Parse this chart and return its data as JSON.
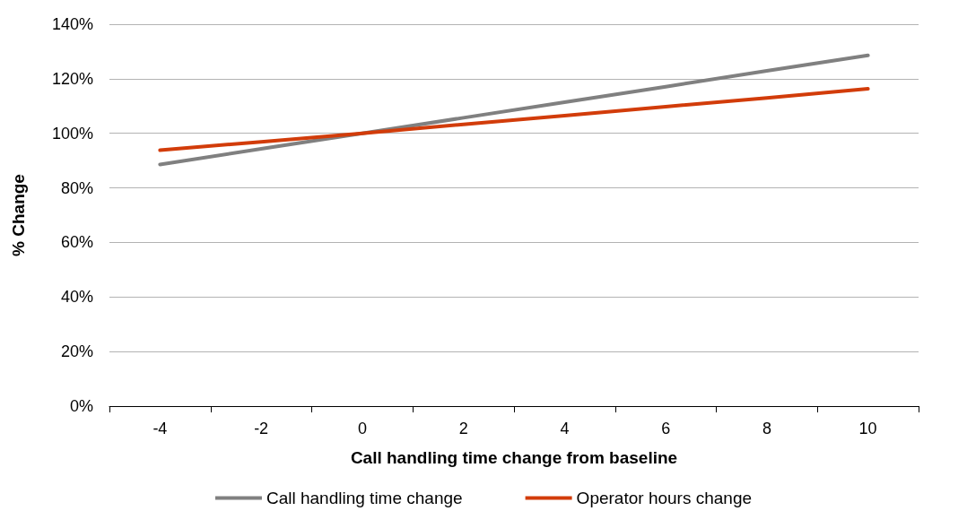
{
  "chart_data": {
    "type": "line",
    "xlabel": "Call handling time change from baseline",
    "ylabel": "% Change",
    "categories": [
      "-4",
      "-2",
      "0",
      "2",
      "4",
      "6",
      "8",
      "10"
    ],
    "series": [
      {
        "name": "Call handling time change",
        "color": "#808080",
        "values": [
          88.6,
          94.3,
          100,
          105.7,
          111.4,
          117.1,
          122.9,
          128.6
        ]
      },
      {
        "name": "Operator hours change",
        "color": "#d23c0a",
        "values": [
          93.8,
          96.9,
          100,
          103.3,
          106.5,
          109.8,
          113,
          116.3
        ]
      }
    ],
    "ylim": [
      0,
      140
    ],
    "yticks": [
      {
        "value": 0,
        "label": "0%"
      },
      {
        "value": 20,
        "label": "20%"
      },
      {
        "value": 40,
        "label": "40%"
      },
      {
        "value": 60,
        "label": "60%"
      },
      {
        "value": 80,
        "label": "80%"
      },
      {
        "value": 100,
        "label": "100%"
      },
      {
        "value": 120,
        "label": "120%"
      },
      {
        "value": 140,
        "label": "140%"
      }
    ],
    "grid": "y",
    "legend": "bottom",
    "marker": "none",
    "line_style": "solid"
  }
}
